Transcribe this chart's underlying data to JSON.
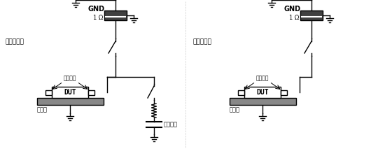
{
  "bg_color": "#ffffff",
  "lc": "#000000",
  "gray_plate": "#888888",
  "gray_resistor": "#555555",
  "diagram1_label": "直接充电法",
  "diagram2_label": "感应充电法",
  "gnd_label": "GND",
  "ohm_label": "1 Ω",
  "dut_label": "DUT",
  "pin_label": "引脚向上",
  "plate_label": "充电板",
  "hv_label": "高压电源",
  "lw": 1.0
}
